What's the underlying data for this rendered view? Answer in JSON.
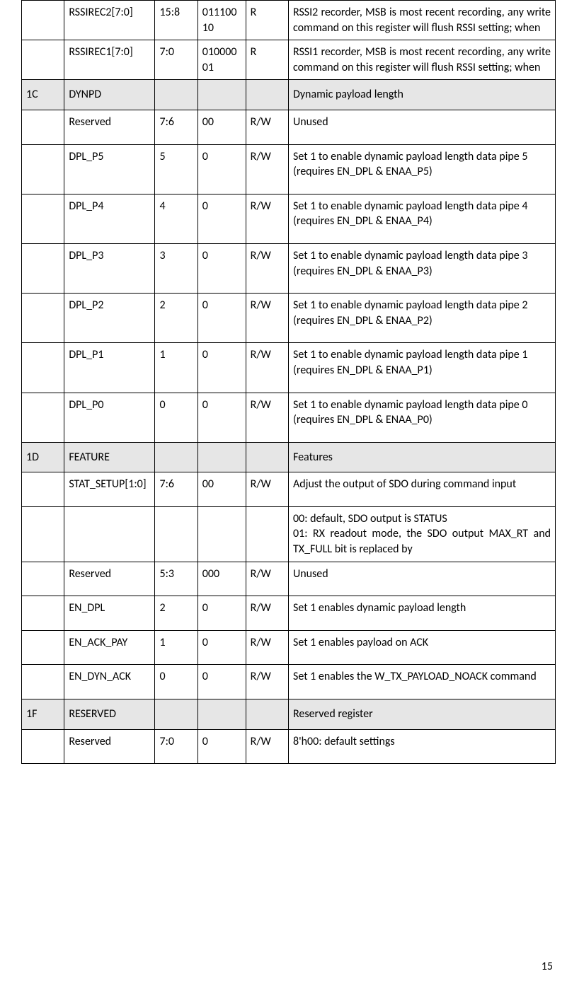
{
  "colors": {
    "section_bg": "#e6e6e6",
    "border": "#000000",
    "text": "#000000",
    "page_bg": "#ffffff"
  },
  "typography": {
    "body_fontsize_pt": 12,
    "font_family": "Calibri"
  },
  "column_widths_pct": [
    8,
    17,
    8,
    9,
    8,
    50
  ],
  "page_number": "15",
  "rows": [
    {
      "type": "data",
      "tight": true,
      "addr": "",
      "name": "RSSIREC2[7:0]",
      "bits": "15:8",
      "reset": "01110010",
      "rw": "R",
      "desc": "RSSI2 recorder, MSB is most recent recording, any write command on this register will flush RSSI setting; when",
      "justify": true
    },
    {
      "type": "data",
      "tight": true,
      "addr": "",
      "name": "RSSIREC1[7:0]",
      "bits": "7:0",
      "reset": "01000001",
      "rw": "R",
      "desc": "RSSI1 recorder, MSB is most recent recording, any write command on this register will flush RSSI setting; when",
      "justify": true
    },
    {
      "type": "section",
      "addr": "1C",
      "name": "DYNPD",
      "bits": "",
      "reset": "",
      "rw": "",
      "desc": "Dynamic payload length"
    },
    {
      "type": "data",
      "addr": "",
      "name": "Reserved",
      "bits": "7:6",
      "reset": "00",
      "rw": "R/W",
      "desc": "Unused"
    },
    {
      "type": "data",
      "addr": "",
      "name": "DPL_P5",
      "bits": "5",
      "reset": "0",
      "rw": "R/W",
      "desc": "Set 1 to enable dynamic payload length data pipe 5 (requires EN_DPL & ENAA_P5)"
    },
    {
      "type": "data",
      "addr": "",
      "name": "DPL_P4",
      "bits": "4",
      "reset": "0",
      "rw": "R/W",
      "desc": "Set 1 to enable dynamic payload length data pipe 4 (requires EN_DPL & ENAA_P4)"
    },
    {
      "type": "data",
      "addr": "",
      "name": "DPL_P3",
      "bits": "3",
      "reset": "0",
      "rw": "R/W",
      "desc": "Set 1 to enable dynamic payload length data pipe 3 (requires EN_DPL & ENAA_P3)"
    },
    {
      "type": "data",
      "addr": "",
      "name": "DPL_P2",
      "bits": "2",
      "reset": "0",
      "rw": "R/W",
      "desc": "Set 1 to enable dynamic payload length data pipe 2 (requires EN_DPL & ENAA_P2)"
    },
    {
      "type": "data",
      "addr": "",
      "name": "DPL_P1",
      "bits": "1",
      "reset": "0",
      "rw": "R/W",
      "desc": "Set 1 to enable dynamic payload length data pipe 1 (requires EN_DPL & ENAA_P1)"
    },
    {
      "type": "data",
      "addr": "",
      "name": "DPL_P0",
      "bits": "0",
      "reset": "0",
      "rw": "R/W",
      "desc": "Set 1 to enable dynamic payload length data pipe 0 (requires EN_DPL & ENAA_P0)"
    },
    {
      "type": "section",
      "addr": "1D",
      "name": "FEATURE",
      "bits": "",
      "reset": "",
      "rw": "",
      "desc": "Features"
    },
    {
      "type": "data",
      "addr": "",
      "name": "STAT_SETUP[1:0]",
      "bits": "7:6",
      "reset": "00",
      "rw": "R/W",
      "desc": "Adjust the output of SDO during command input",
      "justify": true
    },
    {
      "type": "data",
      "tight": true,
      "addr": "",
      "name": "",
      "bits": "",
      "reset": "",
      "rw": "",
      "desc": "00: default, SDO output is STATUS\n01: RX readout mode, the SDO output MAX_RT and TX_FULL bit is replaced by",
      "justify": true
    },
    {
      "type": "data",
      "addr": "",
      "name": "Reserved",
      "bits": "5:3",
      "reset": "000",
      "rw": "R/W",
      "desc": "Unused"
    },
    {
      "type": "data",
      "addr": "",
      "name": "EN_DPL",
      "bits": "2",
      "reset": "0",
      "rw": "R/W",
      "desc": "Set 1 enables dynamic payload length"
    },
    {
      "type": "data",
      "addr": "",
      "name": "EN_ACK_PAY",
      "bits": "1",
      "reset": "0",
      "rw": "R/W",
      "desc": "Set 1 enables payload on ACK"
    },
    {
      "type": "data",
      "addr": "",
      "name": "EN_DYN_ACK",
      "bits": "0",
      "reset": "0",
      "rw": "R/W",
      "desc": "Set 1 enables the W_TX_PAYLOAD_NOACK command",
      "justify": true
    },
    {
      "type": "section",
      "addr": "1F",
      "name": "RESERVED",
      "bits": "",
      "reset": "",
      "rw": "",
      "desc": "Reserved register"
    },
    {
      "type": "data",
      "addr": "",
      "name": "Reserved",
      "bits": "7:0",
      "reset": "0",
      "rw": "R/W",
      "desc": "8'h00: default settings"
    }
  ]
}
